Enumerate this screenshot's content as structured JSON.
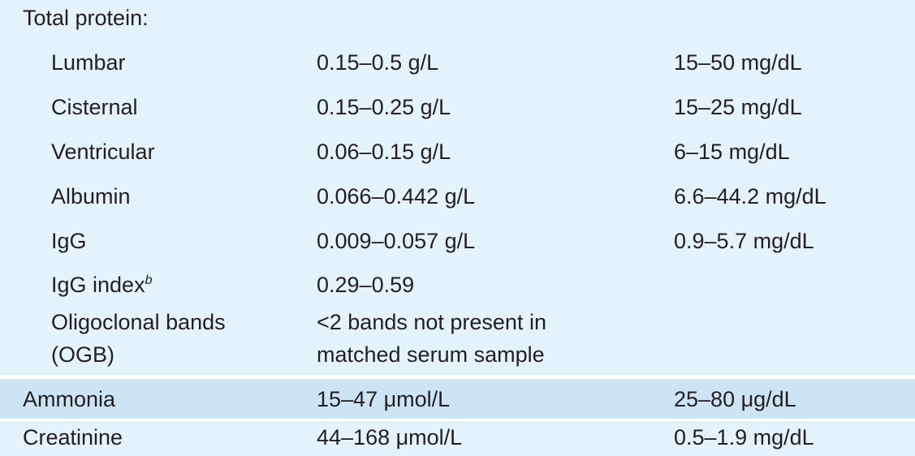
{
  "table": {
    "sections": [
      {
        "label": "Total protein:",
        "items": [
          {
            "label": "Lumbar",
            "si": "0.15–0.5 g/L",
            "conventional": "15–50 mg/dL"
          },
          {
            "label": "Cisternal",
            "si": "0.15–0.25 g/L",
            "conventional": "15–25 mg/dL"
          },
          {
            "label": "Ventricular",
            "si": "0.06–0.15 g/L",
            "conventional": "6–15 mg/dL"
          },
          {
            "label": "Albumin",
            "si": "0.066–0.442 g/L",
            "conventional": "6.6–44.2 mg/dL"
          },
          {
            "label": "IgG",
            "si": "0.009–0.057 g/L",
            "conventional": "0.9–5.7 mg/dL"
          },
          {
            "label": "IgG index",
            "note": "b",
            "si": "0.29–0.59"
          },
          {
            "label": "Oligoclonal bands (OGB)",
            "si": "<2 bands not present in matched serum sample"
          }
        ]
      },
      {
        "label": "Ammonia",
        "si": "15–47 μmol/L",
        "conventional": "25–80 μg/dL"
      },
      {
        "label": "Creatinine",
        "si": "44–168 μmol/L",
        "conventional": "0.5–1.9 mg/dL"
      }
    ]
  }
}
